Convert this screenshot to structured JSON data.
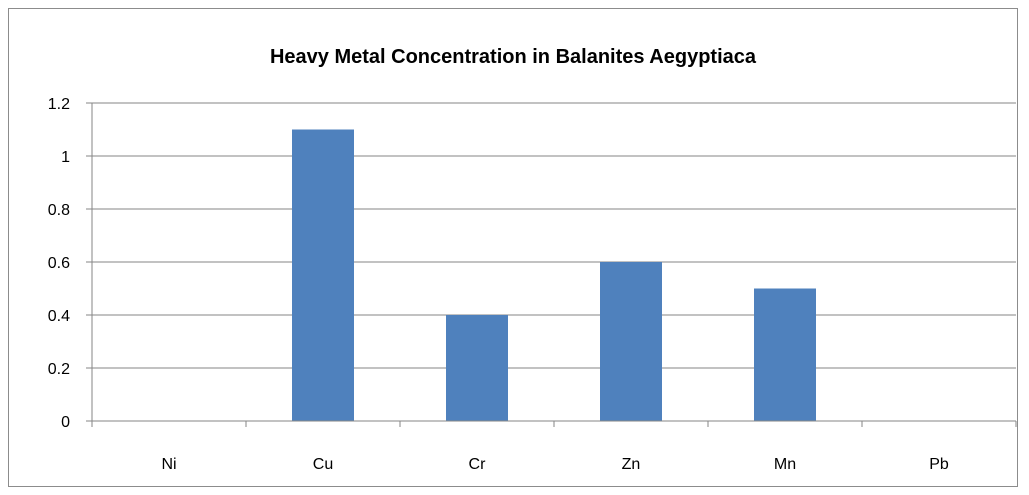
{
  "chart_data": {
    "type": "bar",
    "title": "Heavy Metal Concentration in Balanites Aegyptiaca",
    "xlabel": "",
    "ylabel": "",
    "categories": [
      "Ni",
      "Cu",
      "Cr",
      "Zn",
      "Mn",
      "Pb"
    ],
    "values": [
      0,
      1.1,
      0.4,
      0.6,
      0.5,
      0
    ],
    "ylim": [
      0,
      1.2
    ],
    "yticks": [
      "0",
      "0.2",
      "0.4",
      "0.6",
      "0.8",
      "1",
      "1.2"
    ],
    "grid": true,
    "legend": "none",
    "bar_color": "#4f81bd"
  }
}
